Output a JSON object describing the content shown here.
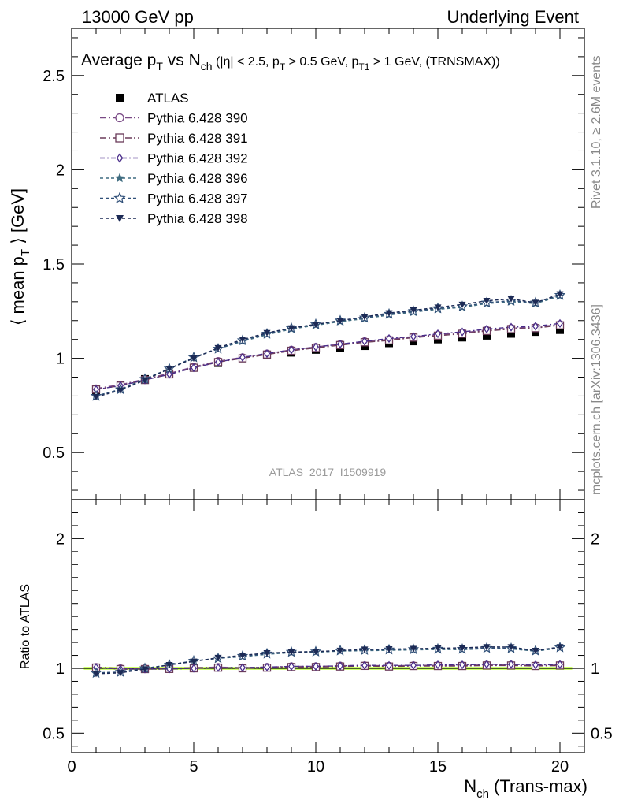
{
  "header": {
    "left": "13000 GeV pp",
    "right": "Underlying Event"
  },
  "side": {
    "rivet": "Rivet 3.1.10, ≥ 2.6M events",
    "mcplots": "mcplots.cern.ch [arXiv:1306.3436]"
  },
  "colors": {
    "data": "#000000",
    "ratio_band": "#ccff66"
  },
  "chart_data": [
    {
      "type": "line",
      "title": {
        "main": "Average p",
        "sub_T": "T",
        "vs": " vs N",
        "sub_ch": "ch",
        "cuts_a": " (|η| < 2.5, p",
        "cuts_b": " > 0.5 GeV, p",
        "sub_T1": "T1",
        "cuts_c": " > 1 GeV, (TRNSMAX))"
      },
      "ylabel": "⟨ mean p",
      "ylabel_sub": "T",
      "ylabel_end": " ⟩ [GeV]",
      "xlim": [
        0,
        21
      ],
      "ylim": [
        0.25,
        2.75
      ],
      "yticks": [
        "0.5",
        "1",
        "1.5",
        "2",
        "2.5"
      ],
      "ytick_values": [
        0.5,
        1,
        1.5,
        2,
        2.5
      ],
      "watermark": "ATLAS_2017_I1509919",
      "x": [
        1,
        2,
        3,
        4,
        5,
        6,
        7,
        8,
        9,
        10,
        11,
        12,
        13,
        14,
        15,
        16,
        17,
        18,
        19,
        20
      ],
      "series": [
        {
          "name": "ATLAS",
          "marker": "filled-square",
          "color": "#000000",
          "values": [
            0.83,
            0.86,
            0.89,
            0.92,
            0.95,
            0.975,
            1.0,
            1.015,
            1.03,
            1.045,
            1.055,
            1.065,
            1.08,
            1.09,
            1.1,
            1.11,
            1.12,
            1.13,
            1.14,
            1.15
          ]
        },
        {
          "name": "Pythia 6.428 390",
          "marker": "open-circle",
          "color": "#7a4a86",
          "dash": "8,3,2,3",
          "values": [
            0.84,
            0.86,
            0.89,
            0.92,
            0.955,
            0.985,
            1.005,
            1.025,
            1.045,
            1.06,
            1.075,
            1.09,
            1.1,
            1.115,
            1.125,
            1.135,
            1.15,
            1.16,
            1.165,
            1.18
          ]
        },
        {
          "name": "Pythia 6.428 391",
          "marker": "open-square",
          "color": "#6b3b5a",
          "dash": "8,3,2,3",
          "values": [
            0.835,
            0.855,
            0.885,
            0.915,
            0.95,
            0.98,
            1.0,
            1.02,
            1.04,
            1.055,
            1.07,
            1.085,
            1.095,
            1.11,
            1.12,
            1.13,
            1.145,
            1.155,
            1.16,
            1.175
          ]
        },
        {
          "name": "Pythia 6.428 392",
          "marker": "open-diamond",
          "color": "#4a2d8a",
          "dash": "6,3,2,3",
          "values": [
            0.835,
            0.855,
            0.885,
            0.915,
            0.95,
            0.98,
            1.005,
            1.025,
            1.045,
            1.06,
            1.075,
            1.09,
            1.105,
            1.115,
            1.13,
            1.14,
            1.155,
            1.165,
            1.17,
            1.185
          ]
        },
        {
          "name": "Pythia 6.428 396",
          "marker": "filled-star",
          "color": "#3f6c80",
          "dash": "4,3",
          "values": [
            0.8,
            0.835,
            0.89,
            0.945,
            1.005,
            1.05,
            1.09,
            1.125,
            1.155,
            1.175,
            1.195,
            1.21,
            1.23,
            1.245,
            1.26,
            1.27,
            1.29,
            1.3,
            1.29,
            1.33
          ]
        },
        {
          "name": "Pythia 6.428 397",
          "marker": "open-star",
          "color": "#2f4f78",
          "dash": "4,3",
          "values": [
            0.8,
            0.835,
            0.89,
            0.945,
            1.005,
            1.05,
            1.095,
            1.13,
            1.16,
            1.18,
            1.2,
            1.215,
            1.235,
            1.25,
            1.265,
            1.275,
            1.295,
            1.305,
            1.295,
            1.335
          ]
        },
        {
          "name": "Pythia 6.428 398",
          "marker": "filled-triangle-down",
          "color": "#1c2a55",
          "dash": "4,3",
          "values": [
            0.795,
            0.83,
            0.885,
            0.945,
            1.0,
            1.055,
            1.1,
            1.135,
            1.16,
            1.18,
            1.2,
            1.22,
            1.24,
            1.255,
            1.27,
            1.285,
            1.305,
            1.315,
            1.295,
            1.34
          ]
        }
      ]
    },
    {
      "type": "line",
      "ylabel": "Ratio to ATLAS",
      "xlabel": "N",
      "xlabel_sub": "ch",
      "xlabel_end": " (Trans-max)",
      "xlim": [
        0,
        21
      ],
      "ylim": [
        0.35,
        2.3
      ],
      "yticks": [
        "0.5",
        "1",
        "2"
      ],
      "ytick_values": [
        0.5,
        1,
        2
      ],
      "xticks": [
        "0",
        "5",
        "10",
        "15",
        "20"
      ],
      "xtick_values": [
        0,
        5,
        10,
        15,
        20
      ],
      "x": [
        1,
        2,
        3,
        4,
        5,
        6,
        7,
        8,
        9,
        10,
        11,
        12,
        13,
        14,
        15,
        16,
        17,
        18,
        19,
        20
      ],
      "series": [
        {
          "name": "Pythia 6.428 390",
          "marker": "open-circle",
          "color": "#7a4a86",
          "dash": "8,3,2,3",
          "values": [
            1.01,
            1.0,
            1.0,
            1.0,
            1.005,
            1.01,
            1.005,
            1.01,
            1.015,
            1.015,
            1.02,
            1.023,
            1.019,
            1.023,
            1.023,
            1.023,
            1.027,
            1.027,
            1.022,
            1.026
          ]
        },
        {
          "name": "Pythia 6.428 391",
          "marker": "open-square",
          "color": "#6b3b5a",
          "dash": "8,3,2,3",
          "values": [
            1.006,
            0.994,
            0.994,
            0.995,
            1.0,
            1.005,
            1.0,
            1.005,
            1.01,
            1.01,
            1.014,
            1.019,
            1.014,
            1.018,
            1.018,
            1.018,
            1.022,
            1.022,
            1.018,
            1.022
          ]
        },
        {
          "name": "Pythia 6.428 392",
          "marker": "open-diamond",
          "color": "#4a2d8a",
          "dash": "6,3,2,3",
          "values": [
            1.006,
            0.994,
            0.994,
            0.995,
            1.0,
            1.005,
            1.005,
            1.01,
            1.015,
            1.015,
            1.019,
            1.023,
            1.023,
            1.023,
            1.027,
            1.027,
            1.031,
            1.031,
            1.026,
            1.03
          ]
        },
        {
          "name": "Pythia 6.428 396",
          "marker": "filled-star",
          "color": "#3f6c80",
          "dash": "4,3",
          "values": [
            0.964,
            0.971,
            1.0,
            1.027,
            1.058,
            1.077,
            1.09,
            1.108,
            1.121,
            1.124,
            1.133,
            1.136,
            1.139,
            1.142,
            1.145,
            1.144,
            1.152,
            1.15,
            1.132,
            1.157
          ]
        },
        {
          "name": "Pythia 6.428 397",
          "marker": "open-star",
          "color": "#2f4f78",
          "dash": "4,3",
          "values": [
            0.964,
            0.971,
            1.0,
            1.027,
            1.058,
            1.077,
            1.095,
            1.113,
            1.126,
            1.129,
            1.137,
            1.141,
            1.144,
            1.147,
            1.15,
            1.149,
            1.156,
            1.155,
            1.136,
            1.161
          ]
        },
        {
          "name": "Pythia 6.428 398",
          "marker": "filled-triangle-down",
          "color": "#1c2a55",
          "dash": "4,3",
          "values": [
            0.958,
            0.965,
            0.994,
            1.027,
            1.053,
            1.082,
            1.1,
            1.118,
            1.126,
            1.129,
            1.137,
            1.146,
            1.148,
            1.151,
            1.155,
            1.158,
            1.165,
            1.164,
            1.136,
            1.165
          ]
        }
      ]
    }
  ]
}
